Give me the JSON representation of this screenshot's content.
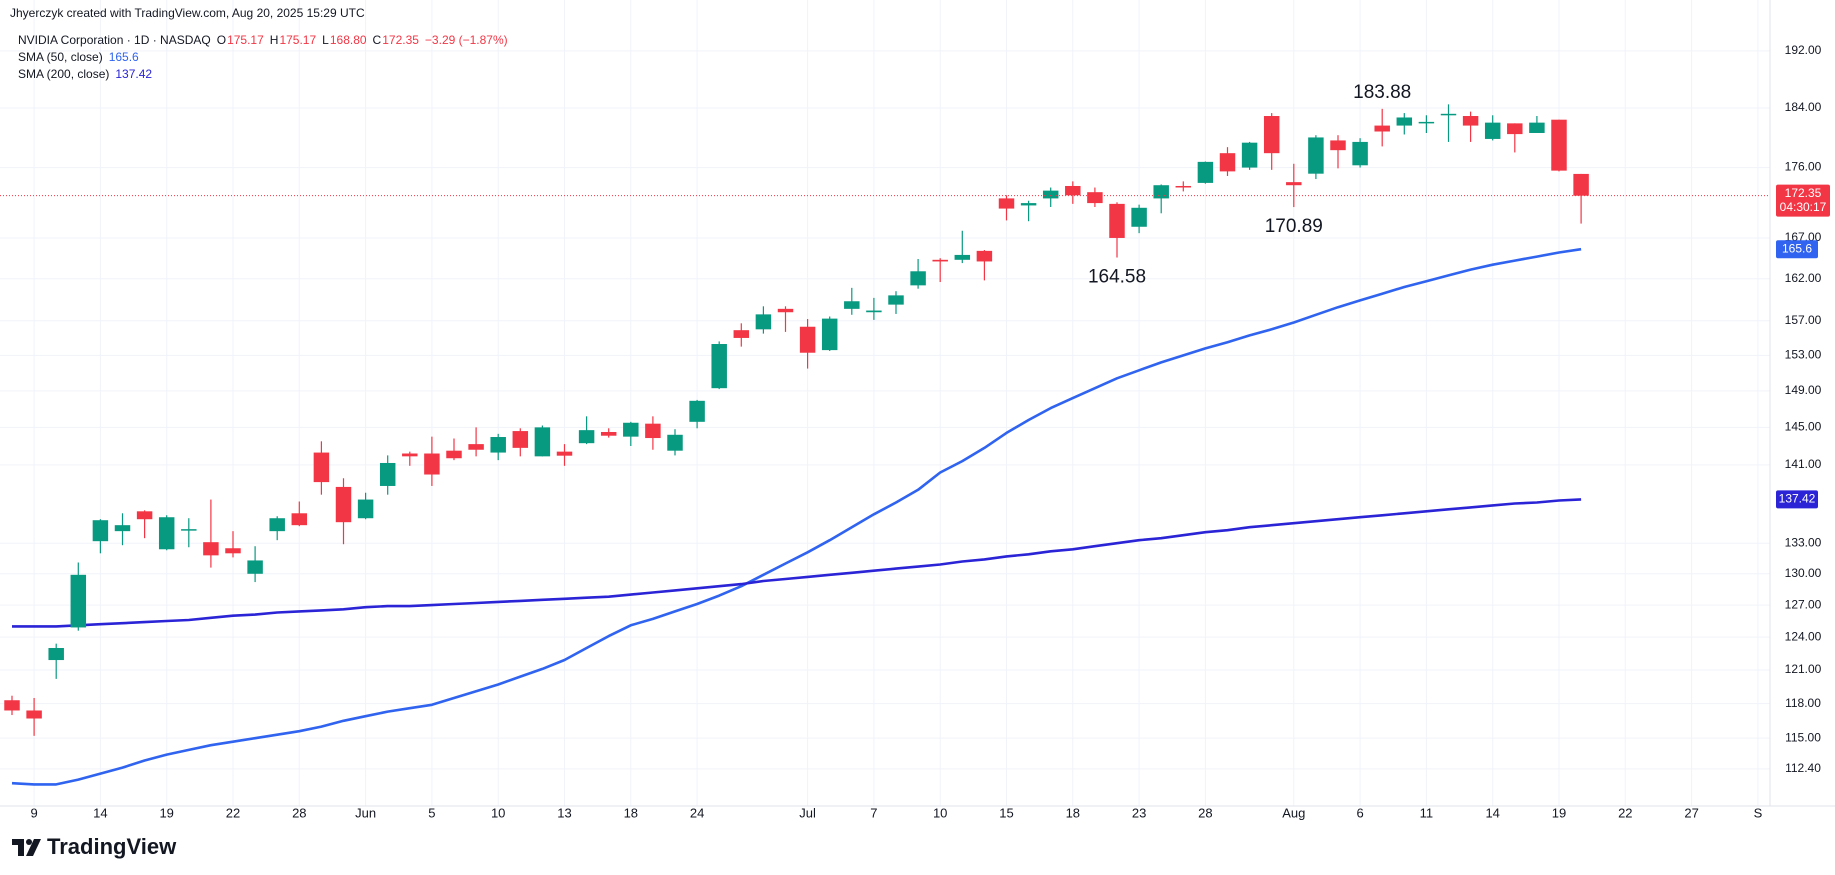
{
  "header": {
    "credit": "Jhyerczyk created with TradingView.com, Aug 20, 2025 15:29 UTC",
    "symbol": "NVIDIA Corporation · 1D · NASDAQ",
    "quote": [
      "O",
      "175.17",
      "H",
      "175.17",
      "L",
      "168.80",
      "C",
      "172.35",
      "−3.29 (−1.87%)"
    ]
  },
  "footer": {
    "brand": "TradingView"
  },
  "chart_data": {
    "type": "candlestick",
    "categories": [
      null,
      "9",
      null,
      null,
      "14",
      null,
      null,
      "19",
      null,
      null,
      "22",
      null,
      null,
      "28",
      null,
      null,
      "Jun",
      null,
      null,
      "5",
      null,
      null,
      "10",
      null,
      null,
      "13",
      null,
      null,
      "18",
      null,
      null,
      "24",
      null,
      null,
      null,
      null,
      "Jul",
      null,
      null,
      "7",
      null,
      null,
      "10",
      null,
      null,
      "15",
      null,
      null,
      "18",
      null,
      null,
      "23",
      null,
      null,
      "28",
      null,
      null,
      null,
      "Aug",
      null,
      null,
      "6",
      null,
      null,
      "11",
      null,
      null,
      "14",
      null,
      null,
      "19",
      null,
      null,
      "22",
      null,
      null,
      "27",
      null,
      null,
      "S"
    ],
    "ohlc": {
      "up_color": "#089981",
      "down_color": "#f23645",
      "open": [
        118.3,
        117.4,
        121.9,
        124.9,
        133.2,
        134.2,
        136.2,
        132.4,
        134.4,
        133.1,
        132.5,
        130.0,
        134.2,
        136.0,
        142.3,
        138.7,
        135.5,
        138.8,
        142.2,
        142.2,
        142.5,
        143.2,
        142.3,
        144.6,
        141.9,
        142.4,
        143.3,
        144.5,
        144.0,
        145.4,
        142.5,
        145.6,
        149.3,
        155.9,
        156.0,
        158.4,
        156.3,
        153.6,
        158.4,
        158.0,
        158.9,
        161.2,
        164.3,
        164.3,
        165.4,
        172.0,
        171.1,
        172.0,
        173.6,
        172.8,
        171.3,
        168.4,
        172.0,
        173.6,
        174.0,
        177.9,
        176.0,
        182.9,
        174.1,
        175.2,
        179.6,
        176.3,
        181.6,
        181.6,
        182.1,
        183.0,
        182.9,
        179.8,
        181.9,
        180.6,
        182.4,
        175.17,
        null,
        null,
        null,
        null,
        null,
        null,
        null,
        null
      ],
      "high": [
        118.7,
        118.5,
        123.4,
        131.1,
        135.4,
        136.0,
        136.3,
        135.8,
        135.5,
        137.4,
        134.2,
        132.7,
        135.7,
        137.2,
        143.5,
        139.6,
        138.1,
        142.0,
        142.4,
        144.0,
        143.8,
        145.0,
        144.3,
        144.9,
        145.2,
        143.2,
        146.2,
        144.9,
        145.6,
        146.2,
        144.8,
        148.0,
        154.6,
        156.7,
        158.7,
        158.7,
        157.2,
        157.5,
        160.9,
        159.7,
        160.5,
        164.4,
        164.5,
        167.9,
        165.5,
        172.4,
        171.7,
        173.4,
        174.2,
        173.4,
        171.5,
        171.2,
        173.8,
        174.2,
        176.8,
        178.7,
        179.4,
        183.3,
        176.5,
        180.3,
        180.3,
        179.9,
        183.88,
        183.3,
        183.0,
        184.5,
        183.5,
        183.0,
        181.9,
        182.9,
        182.4,
        175.17,
        null,
        null,
        null,
        null,
        null,
        null,
        null,
        null
      ],
      "low": [
        117.0,
        115.2,
        120.2,
        124.6,
        132.0,
        132.8,
        133.5,
        132.3,
        132.6,
        130.6,
        131.6,
        129.2,
        133.3,
        134.7,
        137.9,
        132.9,
        135.4,
        137.9,
        140.9,
        138.8,
        141.5,
        141.9,
        141.5,
        141.9,
        141.9,
        140.9,
        143.2,
        143.9,
        143.0,
        142.6,
        142.0,
        144.9,
        149.2,
        154.0,
        155.5,
        155.7,
        151.5,
        153.5,
        157.7,
        157.1,
        157.8,
        160.8,
        161.6,
        163.9,
        161.8,
        169.2,
        169.1,
        170.9,
        171.3,
        170.9,
        164.58,
        167.6,
        170.1,
        172.9,
        173.9,
        174.9,
        175.7,
        175.7,
        170.89,
        174.5,
        175.9,
        176.0,
        178.8,
        180.4,
        180.6,
        179.4,
        179.4,
        179.6,
        178.0,
        180.6,
        175.5,
        168.8,
        null,
        null,
        null,
        null,
        null,
        null,
        null,
        null
      ],
      "close": [
        117.4,
        116.7,
        123.0,
        129.9,
        135.3,
        134.8,
        135.4,
        135.6,
        134.4,
        131.8,
        132.0,
        131.3,
        135.5,
        134.8,
        139.2,
        135.1,
        137.4,
        141.2,
        141.9,
        139.99,
        141.7,
        142.6,
        143.96,
        142.8,
        145.0,
        141.97,
        144.7,
        144.1,
        145.5,
        143.85,
        144.2,
        147.9,
        154.3,
        155.0,
        157.75,
        158.0,
        153.3,
        157.25,
        159.3,
        158.2,
        160.0,
        162.9,
        164.1,
        164.9,
        164.1,
        170.7,
        171.4,
        173.0,
        172.4,
        171.4,
        167.0,
        170.8,
        173.7,
        173.5,
        176.75,
        175.5,
        179.3,
        177.9,
        173.7,
        180.0,
        178.3,
        179.4,
        180.8,
        182.7,
        182.1,
        183.2,
        181.6,
        182.0,
        180.45,
        182.0,
        175.6,
        172.35,
        null,
        null,
        null,
        null,
        null,
        null,
        null,
        null
      ],
      "countdown": "04:30:17"
    },
    "series": [
      {
        "name": "SMA (50, close)",
        "color": "#2f63f0",
        "values": [
          111.2,
          111.1,
          111.1,
          111.5,
          112.0,
          112.5,
          113.1,
          113.6,
          114.0,
          114.4,
          114.7,
          115.0,
          115.3,
          115.6,
          116.0,
          116.5,
          116.9,
          117.3,
          117.6,
          117.9,
          118.5,
          119.1,
          119.7,
          120.4,
          121.1,
          121.9,
          123.0,
          124.1,
          125.1,
          125.7,
          126.4,
          127.1,
          127.9,
          128.8,
          129.9,
          131.0,
          132.1,
          133.3,
          134.6,
          135.9,
          137.1,
          138.4,
          140.2,
          141.4,
          142.8,
          144.4,
          145.8,
          147.1,
          148.2,
          149.3,
          150.4,
          151.3,
          152.2,
          153.0,
          153.8,
          154.5,
          155.3,
          156.0,
          156.8,
          157.7,
          158.6,
          159.4,
          160.2,
          161.0,
          161.7,
          162.4,
          163.1,
          163.7,
          164.2,
          164.7,
          165.2,
          165.6,
          null,
          null,
          null,
          null,
          null,
          null,
          null,
          null
        ]
      },
      {
        "name": "SMA (200, close)",
        "color": "#2a24d6",
        "values": [
          125.0,
          125.0,
          125.0,
          125.1,
          125.2,
          125.3,
          125.4,
          125.5,
          125.6,
          125.8,
          126.0,
          126.1,
          126.3,
          126.4,
          126.5,
          126.6,
          126.8,
          126.9,
          126.9,
          127.0,
          127.1,
          127.2,
          127.3,
          127.4,
          127.5,
          127.6,
          127.7,
          127.8,
          128.0,
          128.2,
          128.4,
          128.6,
          128.8,
          129.0,
          129.3,
          129.5,
          129.7,
          129.9,
          130.1,
          130.3,
          130.5,
          130.7,
          130.9,
          131.2,
          131.4,
          131.7,
          131.9,
          132.2,
          132.4,
          132.7,
          133.0,
          133.3,
          133.5,
          133.8,
          134.1,
          134.3,
          134.6,
          134.8,
          135.0,
          135.2,
          135.4,
          135.6,
          135.8,
          136.0,
          136.2,
          136.4,
          136.6,
          136.8,
          137.0,
          137.1,
          137.3,
          137.42,
          null,
          null,
          null,
          null,
          null,
          null,
          null,
          null
        ]
      }
    ],
    "annotations": [
      {
        "x": 62,
        "y": 183.88,
        "label": "183.88"
      },
      {
        "x": 50,
        "y": 164.58,
        "label": "164.58"
      },
      {
        "x": 58,
        "y": 170.89,
        "label": "170.89"
      }
    ],
    "ylim": [
      109.9,
      195.6
    ],
    "log_scale": true,
    "grid": true,
    "yticks": [
      {
        "value": 112.4,
        "label": "112.40"
      },
      {
        "value": 115,
        "label": "115.00"
      },
      {
        "value": 118,
        "label": "118.00"
      },
      {
        "value": 121,
        "label": "121.00"
      },
      {
        "value": 124,
        "label": "124.00"
      },
      {
        "value": 127,
        "label": "127.00"
      },
      {
        "value": 130,
        "label": "130.00"
      },
      {
        "value": 133,
        "label": "133.00"
      },
      {
        "value": 141,
        "label": "141.00"
      },
      {
        "value": 145,
        "label": "145.00"
      },
      {
        "value": 149,
        "label": "149.00"
      },
      {
        "value": 153,
        "label": "153.00"
      },
      {
        "value": 157,
        "label": "157.00"
      },
      {
        "value": 162,
        "label": "162.00"
      },
      {
        "value": 167,
        "label": "167.00"
      },
      {
        "value": 176,
        "label": "176.00"
      },
      {
        "value": 184,
        "label": "184.00"
      },
      {
        "value": 192,
        "label": "192.00"
      }
    ]
  }
}
